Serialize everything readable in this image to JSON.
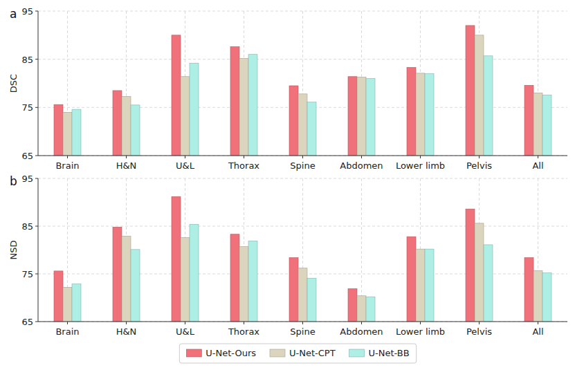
{
  "chart_data": [
    {
      "type": "bar",
      "title": "a",
      "y_label": "DSC",
      "categories": [
        "Brain",
        "H&N",
        "U&L",
        "Thorax",
        "Spine",
        "Abdomen",
        "Lower limb",
        "Pelvis",
        "All"
      ],
      "series": [
        {
          "name": "U-Net-Ours",
          "color": "#f0717a",
          "values": [
            75.6,
            78.5,
            90.0,
            87.6,
            79.5,
            81.4,
            83.3,
            92.0,
            79.6
          ]
        },
        {
          "name": "U-Net-CPT",
          "color": "#dbd5bd",
          "values": [
            74.0,
            77.3,
            81.4,
            85.2,
            77.8,
            81.3,
            82.1,
            90.0,
            78.0
          ]
        },
        {
          "name": "U-Net-BB",
          "color": "#adeee5",
          "values": [
            74.6,
            75.5,
            84.2,
            86.0,
            76.1,
            81.0,
            82.0,
            85.7,
            77.6
          ]
        }
      ],
      "ylim": [
        65,
        95
      ],
      "yticks": [
        65,
        75,
        85,
        95
      ],
      "grid": true
    },
    {
      "type": "bar",
      "title": "b",
      "y_label": "NSD",
      "categories": [
        "Brain",
        "H&N",
        "U&L",
        "Thorax",
        "Spine",
        "Abdomen",
        "Lower limb",
        "Pelvis",
        "All"
      ],
      "series": [
        {
          "name": "U-Net-Ours",
          "color": "#f0717a",
          "values": [
            75.6,
            84.8,
            91.2,
            83.3,
            78.4,
            71.9,
            82.8,
            88.6,
            78.4
          ]
        },
        {
          "name": "U-Net-CPT",
          "color": "#dbd5bd",
          "values": [
            72.2,
            82.9,
            82.6,
            80.7,
            76.2,
            70.4,
            80.2,
            85.6,
            75.7
          ]
        },
        {
          "name": "U-Net-BB",
          "color": "#adeee5",
          "values": [
            72.9,
            80.1,
            85.4,
            81.9,
            74.1,
            70.2,
            80.2,
            81.1,
            75.2
          ]
        }
      ],
      "ylim": [
        65,
        95
      ],
      "yticks": [
        65,
        75,
        85,
        95
      ],
      "grid": true,
      "legend": "bottom"
    }
  ]
}
